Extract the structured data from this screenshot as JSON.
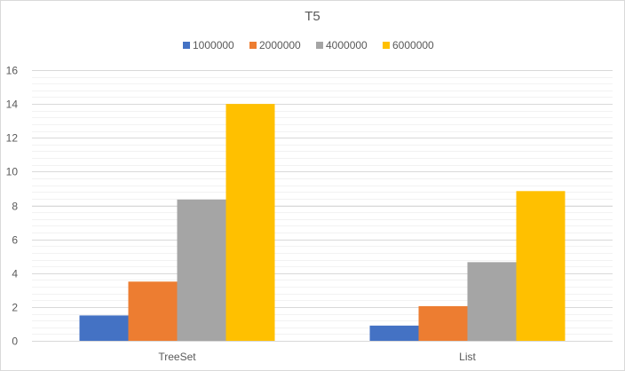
{
  "chart_data": {
    "type": "bar",
    "title": "T5",
    "categories": [
      "TreeSet",
      "List"
    ],
    "series": [
      {
        "name": "1000000",
        "values": [
          1.5,
          0.9
        ]
      },
      {
        "name": "2000000",
        "values": [
          3.5,
          2.05
        ]
      },
      {
        "name": "4000000",
        "values": [
          8.35,
          4.65
        ]
      },
      {
        "name": "6000000",
        "values": [
          14.0,
          8.85
        ]
      }
    ],
    "colors": [
      "#4472c4",
      "#ed7d31",
      "#a5a5a5",
      "#ffc000"
    ],
    "ylim": [
      0,
      16
    ],
    "y_ticks": [
      0,
      2,
      4,
      6,
      8,
      10,
      12,
      14,
      16
    ],
    "y_tick_labels": [
      "0",
      "2",
      "4",
      "6",
      "8",
      "10",
      "12",
      "14",
      "16"
    ],
    "minor_grid_step": 0.4,
    "grid": true,
    "legend_position": "top-center",
    "xlabel": "",
    "ylabel": ""
  }
}
